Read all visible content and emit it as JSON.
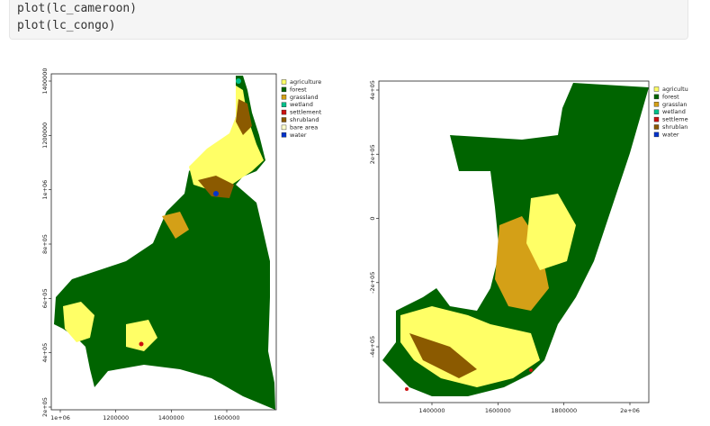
{
  "code": {
    "lines": [
      "plot(lc_cameroon)",
      "plot(lc_congo)"
    ]
  },
  "plots": [
    {
      "yticks": [
        "2e+05",
        "4e+05",
        "6e+05",
        "8e+05",
        "1e+06",
        "1200000",
        "1400000"
      ],
      "xticks": [
        "1e+06",
        "1200000",
        "1400000",
        "1600000"
      ],
      "legend": [
        {
          "label": "agriculture",
          "color": "#ffff66"
        },
        {
          "label": "forest",
          "color": "#006400"
        },
        {
          "label": "grassland",
          "color": "#d4a017"
        },
        {
          "label": "wetland",
          "color": "#00c08b"
        },
        {
          "label": "settlement",
          "color": "#cc1010"
        },
        {
          "label": "shrubland",
          "color": "#8b5a00"
        },
        {
          "label": "bare area",
          "color": "#ffffcc"
        },
        {
          "label": "water",
          "color": "#0033cc"
        }
      ]
    },
    {
      "yticks": [
        "-4e+05",
        "-2e+05",
        "0",
        "2e+05",
        "4e+05"
      ],
      "xticks": [
        "1400000",
        "1600000",
        "1800000",
        "2e+06"
      ],
      "legend": [
        {
          "label": "agricultu",
          "color": "#ffff66"
        },
        {
          "label": "forest",
          "color": "#006400"
        },
        {
          "label": "grasslan",
          "color": "#d4a017"
        },
        {
          "label": "wetland",
          "color": "#00c08b"
        },
        {
          "label": "settleme",
          "color": "#cc1010"
        },
        {
          "label": "shrublan",
          "color": "#8b5a00"
        },
        {
          "label": "water",
          "color": "#0033cc"
        }
      ]
    }
  ]
}
